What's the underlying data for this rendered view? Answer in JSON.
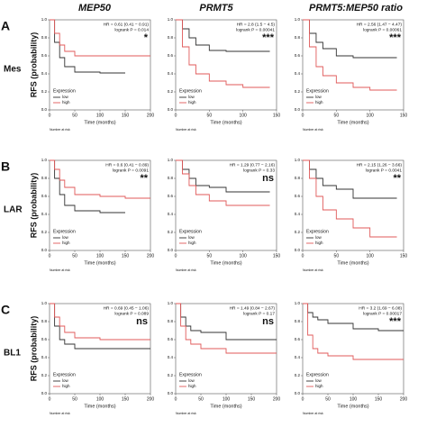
{
  "columns": [
    "MEP50",
    "PRMT5",
    "PRMT5:MEP50 ratio"
  ],
  "rows": [
    {
      "letter": "A",
      "name": "Mes",
      "ylabel": "RFS (probability)"
    },
    {
      "letter": "B",
      "name": "LAR",
      "ylabel": "RFS (probability)"
    },
    {
      "letter": "C",
      "name": "BL1",
      "ylabel": "RFS (probability)"
    }
  ],
  "chart_data": [
    {
      "type": "line",
      "hr": "HR = 0.61 (0.41 − 0.91)",
      "p": "logrank P = 0.014",
      "sig": "*",
      "legend_title": "Expression",
      "xlabel": "Time (months)",
      "risk_label": "Number at risk",
      "x": [
        0,
        10,
        20,
        30,
        50,
        100,
        150,
        200
      ],
      "xlim": [
        0,
        200
      ],
      "xticks": [
        0,
        50,
        100,
        150,
        200
      ],
      "ylim": [
        0,
        1
      ],
      "yticks": [
        {
          "value": 0,
          "label": "0.0"
        },
        {
          "value": 0.2,
          "label": "0.2"
        },
        {
          "value": 0.4,
          "label": "0.4"
        },
        {
          "value": 0.6,
          "label": "0.6"
        },
        {
          "value": 0.8,
          "label": "0.8"
        },
        {
          "value": 1,
          "label": "1.0"
        }
      ],
      "series": [
        {
          "name": "low",
          "color": "#333333",
          "values": [
            1,
            0.75,
            0.58,
            0.48,
            0.42,
            0.41,
            0.41,
            null
          ]
        },
        {
          "name": "high",
          "color": "#e05a5a",
          "values": [
            1,
            0.85,
            0.72,
            0.65,
            0.6,
            0.6,
            0.6,
            0.6
          ]
        }
      ]
    },
    {
      "type": "line",
      "hr": "HR = 2.8 (1.5 − 4.5)",
      "p": "logrank P = 0.00041",
      "sig": "***",
      "legend_title": "Expression",
      "xlabel": "Time (months)",
      "risk_label": "Number at risk",
      "x": [
        0,
        10,
        20,
        30,
        50,
        75,
        100,
        140
      ],
      "xlim": [
        0,
        150
      ],
      "xticks": [
        0,
        50,
        100,
        150
      ],
      "ylim": [
        0,
        1
      ],
      "yticks": [
        {
          "value": 0,
          "label": "0.0"
        },
        {
          "value": 0.2,
          "label": "0.2"
        },
        {
          "value": 0.4,
          "label": "0.4"
        },
        {
          "value": 0.6,
          "label": "0.6"
        },
        {
          "value": 0.8,
          "label": "0.8"
        },
        {
          "value": 1,
          "label": "1.0"
        }
      ],
      "series": [
        {
          "name": "low",
          "color": "#333333",
          "values": [
            1,
            0.9,
            0.8,
            0.72,
            0.66,
            0.65,
            0.65,
            0.65
          ]
        },
        {
          "name": "high",
          "color": "#e05a5a",
          "values": [
            1,
            0.7,
            0.5,
            0.4,
            0.32,
            0.28,
            0.25,
            0.25
          ]
        }
      ]
    },
    {
      "type": "line",
      "hr": "HR = 2.56 (1.47 − 4.47)",
      "p": "logrank P = 0.00061",
      "sig": "***",
      "legend_title": "Expression",
      "xlabel": "Time (months)",
      "risk_label": "Number at risk",
      "x": [
        0,
        10,
        20,
        30,
        50,
        75,
        100,
        140
      ],
      "xlim": [
        0,
        150
      ],
      "xticks": [
        0,
        50,
        100,
        150
      ],
      "ylim": [
        0,
        1
      ],
      "yticks": [
        {
          "value": 0,
          "label": "0.0"
        },
        {
          "value": 0.2,
          "label": "0.2"
        },
        {
          "value": 0.4,
          "label": "0.4"
        },
        {
          "value": 0.6,
          "label": "0.6"
        },
        {
          "value": 0.8,
          "label": "0.8"
        },
        {
          "value": 1,
          "label": "1.0"
        }
      ],
      "series": [
        {
          "name": "low",
          "color": "#333333",
          "values": [
            1,
            0.85,
            0.75,
            0.68,
            0.6,
            0.58,
            0.58,
            0.58
          ]
        },
        {
          "name": "high",
          "color": "#e05a5a",
          "values": [
            1,
            0.7,
            0.48,
            0.38,
            0.3,
            0.25,
            0.22,
            0.22
          ]
        }
      ]
    },
    {
      "type": "line",
      "hr": "HR = 0.6 (0.41 − 0.89)",
      "p": "logrank P = 0.0091",
      "sig": "**",
      "legend_title": "Expression",
      "xlabel": "Time (months)",
      "risk_label": "Number at risk",
      "x": [
        0,
        10,
        20,
        30,
        50,
        100,
        150,
        200
      ],
      "xlim": [
        0,
        200
      ],
      "xticks": [
        0,
        50,
        100,
        150,
        200
      ],
      "ylim": [
        0,
        1
      ],
      "yticks": [
        {
          "value": 0,
          "label": "0.0"
        },
        {
          "value": 0.2,
          "label": "0.2"
        },
        {
          "value": 0.4,
          "label": "0.4"
        },
        {
          "value": 0.6,
          "label": "0.6"
        },
        {
          "value": 0.8,
          "label": "0.8"
        },
        {
          "value": 1,
          "label": "1.0"
        }
      ],
      "series": [
        {
          "name": "low",
          "color": "#333333",
          "values": [
            1,
            0.8,
            0.62,
            0.5,
            0.44,
            0.42,
            0.42,
            null
          ]
        },
        {
          "name": "high",
          "color": "#e05a5a",
          "values": [
            1,
            0.9,
            0.78,
            0.7,
            0.62,
            0.6,
            0.58,
            0.58
          ]
        }
      ]
    },
    {
      "type": "line",
      "hr": "HR = 1.29 (0.77 − 2.16)",
      "p": "logrank P = 0.33",
      "sig": "ns",
      "legend_title": "Expression",
      "xlabel": "Time (months)",
      "risk_label": "Number at risk",
      "x": [
        0,
        10,
        20,
        30,
        50,
        75,
        100,
        140
      ],
      "xlim": [
        0,
        150
      ],
      "xticks": [
        0,
        50,
        100,
        150
      ],
      "ylim": [
        0,
        1
      ],
      "yticks": [
        {
          "value": 0,
          "label": "0.0"
        },
        {
          "value": 0.2,
          "label": "0.2"
        },
        {
          "value": 0.4,
          "label": "0.4"
        },
        {
          "value": 0.6,
          "label": "0.6"
        },
        {
          "value": 0.8,
          "label": "0.8"
        },
        {
          "value": 1,
          "label": "1.0"
        }
      ],
      "series": [
        {
          "name": "low",
          "color": "#333333",
          "values": [
            1,
            0.9,
            0.8,
            0.72,
            0.7,
            0.65,
            0.65,
            0.65
          ]
        },
        {
          "name": "high",
          "color": "#e05a5a",
          "values": [
            1,
            0.85,
            0.72,
            0.62,
            0.55,
            0.5,
            0.5,
            0.5
          ]
        }
      ]
    },
    {
      "type": "line",
      "hr": "HR = 2.15 (1.26 − 3.66)",
      "p": "logrank P = 0.0041",
      "sig": "**",
      "legend_title": "Expression",
      "xlabel": "Time (months)",
      "risk_label": "Number at risk",
      "x": [
        0,
        10,
        20,
        30,
        50,
        75,
        100,
        140
      ],
      "xlim": [
        0,
        150
      ],
      "xticks": [
        0,
        50,
        100,
        150
      ],
      "ylim": [
        0,
        1
      ],
      "yticks": [
        {
          "value": 0,
          "label": "0.0"
        },
        {
          "value": 0.2,
          "label": "0.2"
        },
        {
          "value": 0.4,
          "label": "0.4"
        },
        {
          "value": 0.6,
          "label": "0.6"
        },
        {
          "value": 0.8,
          "label": "0.8"
        },
        {
          "value": 1,
          "label": "1.0"
        }
      ],
      "series": [
        {
          "name": "low",
          "color": "#333333",
          "values": [
            1,
            0.9,
            0.8,
            0.72,
            0.68,
            0.58,
            0.58,
            0.58
          ]
        },
        {
          "name": "high",
          "color": "#e05a5a",
          "values": [
            1,
            0.8,
            0.6,
            0.45,
            0.35,
            0.25,
            0.15,
            0.15
          ]
        }
      ]
    },
    {
      "type": "line",
      "hr": "HR = 0.69 (0.45 − 1.06)",
      "p": "logrank P = 0.089",
      "sig": "ns",
      "legend_title": "Expression",
      "xlabel": "Time (months)",
      "risk_label": "Number at risk",
      "x": [
        0,
        10,
        20,
        30,
        50,
        100,
        150,
        200
      ],
      "xlim": [
        0,
        200
      ],
      "xticks": [
        0,
        50,
        100,
        150,
        200
      ],
      "ylim": [
        0,
        1
      ],
      "yticks": [
        {
          "value": 0,
          "label": "0.0"
        },
        {
          "value": 0.2,
          "label": "0.2"
        },
        {
          "value": 0.4,
          "label": "0.4"
        },
        {
          "value": 0.6,
          "label": "0.6"
        },
        {
          "value": 0.8,
          "label": "0.8"
        },
        {
          "value": 1,
          "label": "1.0"
        }
      ],
      "series": [
        {
          "name": "low",
          "color": "#333333",
          "values": [
            1,
            0.75,
            0.6,
            0.55,
            0.5,
            0.5,
            0.5,
            0.5
          ]
        },
        {
          "name": "high",
          "color": "#e05a5a",
          "values": [
            1,
            0.85,
            0.75,
            0.68,
            0.62,
            0.6,
            0.6,
            0.6
          ]
        }
      ]
    },
    {
      "type": "line",
      "hr": "HR = 1.49 (0.84 − 2.67)",
      "p": "logrank P = 0.17",
      "sig": "ns",
      "legend_title": "Expression",
      "xlabel": "Time (months)",
      "risk_label": "Number at risk",
      "x": [
        0,
        10,
        20,
        30,
        50,
        100,
        150,
        200
      ],
      "xlim": [
        0,
        200
      ],
      "xticks": [
        0,
        50,
        100,
        150,
        200
      ],
      "ylim": [
        0,
        1
      ],
      "yticks": [
        {
          "value": 0,
          "label": "0.0"
        },
        {
          "value": 0.2,
          "label": "0.2"
        },
        {
          "value": 0.4,
          "label": "0.4"
        },
        {
          "value": 0.6,
          "label": "0.6"
        },
        {
          "value": 0.8,
          "label": "0.8"
        },
        {
          "value": 1,
          "label": "1.0"
        }
      ],
      "series": [
        {
          "name": "low",
          "color": "#333333",
          "values": [
            1,
            0.85,
            0.75,
            0.7,
            0.68,
            0.6,
            0.6,
            0.6
          ]
        },
        {
          "name": "high",
          "color": "#e05a5a",
          "values": [
            1,
            0.75,
            0.6,
            0.55,
            0.5,
            0.45,
            0.45,
            0.45
          ]
        }
      ]
    },
    {
      "type": "line",
      "hr": "HR = 3.2 (1.69 − 6.08)",
      "p": "logrank P = 0.00017",
      "sig": "***",
      "legend_title": "Expression",
      "xlabel": "Time (months)",
      "risk_label": "Number at risk",
      "x": [
        0,
        10,
        20,
        30,
        50,
        100,
        150,
        200
      ],
      "xlim": [
        0,
        200
      ],
      "xticks": [
        0,
        50,
        100,
        150,
        200
      ],
      "ylim": [
        0,
        1
      ],
      "yticks": [
        {
          "value": 0,
          "label": "0.0"
        },
        {
          "value": 0.2,
          "label": "0.2"
        },
        {
          "value": 0.4,
          "label": "0.4"
        },
        {
          "value": 0.6,
          "label": "0.6"
        },
        {
          "value": 0.8,
          "label": "0.8"
        },
        {
          "value": 1,
          "label": "1.0"
        }
      ],
      "series": [
        {
          "name": "low",
          "color": "#333333",
          "values": [
            1,
            0.9,
            0.85,
            0.82,
            0.78,
            0.72,
            0.7,
            0.7
          ]
        },
        {
          "name": "high",
          "color": "#e05a5a",
          "values": [
            1,
            0.65,
            0.5,
            0.45,
            0.42,
            0.38,
            0.38,
            0.38
          ]
        }
      ]
    }
  ]
}
